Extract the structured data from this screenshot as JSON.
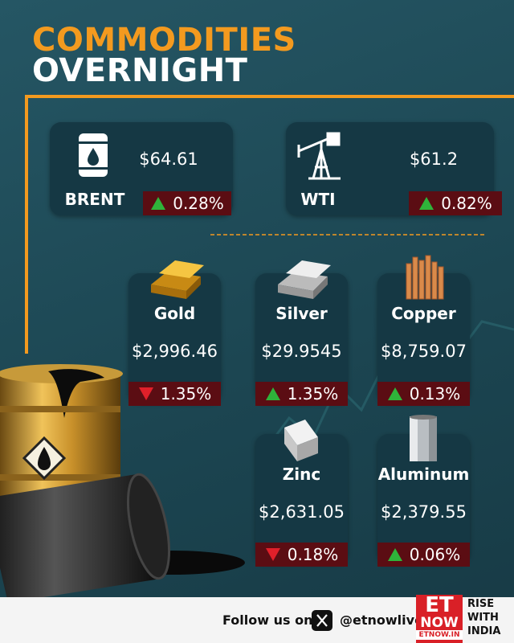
{
  "header": {
    "title_line1": "COMMODITIES",
    "title_line2": "OVERNIGHT"
  },
  "oil": [
    {
      "name": "BRENT",
      "price": "$64.61",
      "change": "0.28%",
      "direction": "up"
    },
    {
      "name": "WTI",
      "price": "$61.2",
      "change": "0.82%",
      "direction": "up"
    }
  ],
  "metals": [
    {
      "name": "Gold",
      "price": "$2,996.46",
      "change": "1.35%",
      "direction": "down"
    },
    {
      "name": "Silver",
      "price": "$29.9545",
      "change": "1.35%",
      "direction": "up"
    },
    {
      "name": "Copper",
      "price": "$8,759.07",
      "change": "0.13%",
      "direction": "up"
    },
    {
      "name": "Zinc",
      "price": "$2,631.05",
      "change": "0.18%",
      "direction": "down"
    },
    {
      "name": "Aluminum",
      "price": "$2,379.55",
      "change": "0.06%",
      "direction": "up"
    }
  ],
  "footer": {
    "follow": "Follow us on",
    "handle": "@etnowlive",
    "logo_top": "ET",
    "logo_bottom": "NOW",
    "site": "ETNOW.IN",
    "slogan1": "RISE",
    "slogan2": "WITH",
    "slogan3": "INDIA"
  }
}
